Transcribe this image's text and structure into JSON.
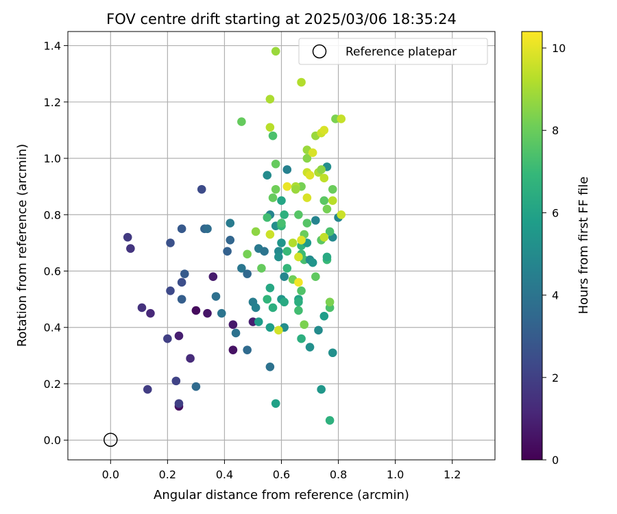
{
  "chart_data": {
    "type": "scatter",
    "title": "FOV centre drift starting at 2025/03/06 18:35:24",
    "xlabel": "Angular distance from reference (arcmin)",
    "ylabel": "Rotation from reference (arcmin)",
    "xlim": [
      -0.15,
      1.35
    ],
    "ylim": [
      -0.07,
      1.45
    ],
    "xticks": [
      "0.0",
      "0.2",
      "0.4",
      "0.6",
      "0.8",
      "1.0",
      "1.2"
    ],
    "yticks": [
      "0.0",
      "0.2",
      "0.4",
      "0.6",
      "0.8",
      "1.0",
      "1.2",
      "1.4"
    ],
    "grid": true,
    "legend": {
      "position": "top-right",
      "label": "Reference platepar"
    },
    "reference_point": {
      "x": 0.0,
      "y": 0.0
    },
    "colorbar": {
      "label": "Hours from first FF file",
      "range": [
        0,
        10.4
      ],
      "ticks": [
        "0",
        "2",
        "4",
        "6",
        "8",
        "10"
      ],
      "colormap": "viridis"
    },
    "points": [
      [
        0.24,
        0.12,
        0.4
      ],
      [
        0.3,
        0.46,
        0.3
      ],
      [
        0.34,
        0.45,
        0.6
      ],
      [
        0.36,
        0.58,
        0.8
      ],
      [
        0.43,
        0.41,
        0.7
      ],
      [
        0.43,
        0.32,
        0.5
      ],
      [
        0.5,
        0.42,
        0.9
      ],
      [
        0.24,
        0.37,
        0.9
      ],
      [
        0.28,
        0.29,
        1.3
      ],
      [
        0.14,
        0.45,
        1.2
      ],
      [
        0.11,
        0.47,
        1.5
      ],
      [
        0.07,
        0.68,
        1.6
      ],
      [
        0.06,
        0.72,
        1.8
      ],
      [
        0.13,
        0.18,
        1.9
      ],
      [
        0.24,
        0.13,
        2.0
      ],
      [
        0.23,
        0.21,
        2.1
      ],
      [
        0.2,
        0.36,
        2.0
      ],
      [
        0.21,
        0.53,
        2.3
      ],
      [
        0.21,
        0.7,
        2.6
      ],
      [
        0.25,
        0.56,
        2.5
      ],
      [
        0.25,
        0.75,
        2.9
      ],
      [
        0.26,
        0.59,
        3.0
      ],
      [
        0.25,
        0.5,
        3.1
      ],
      [
        0.32,
        0.89,
        2.4
      ],
      [
        0.33,
        0.75,
        3.3
      ],
      [
        0.3,
        0.19,
        3.6
      ],
      [
        0.34,
        0.75,
        3.7
      ],
      [
        0.41,
        0.67,
        3.2
      ],
      [
        0.42,
        0.71,
        3.4
      ],
      [
        0.37,
        0.51,
        3.8
      ],
      [
        0.39,
        0.45,
        4.0
      ],
      [
        0.44,
        0.38,
        3.9
      ],
      [
        0.46,
        0.61,
        4.1
      ],
      [
        0.48,
        0.59,
        3.5
      ],
      [
        0.48,
        0.32,
        3.6
      ],
      [
        0.42,
        0.77,
        4.3
      ],
      [
        0.5,
        0.49,
        4.4
      ],
      [
        0.51,
        0.47,
        4.6
      ],
      [
        0.52,
        0.68,
        4.2
      ],
      [
        0.54,
        0.67,
        4.0
      ],
      [
        0.56,
        0.26,
        3.9
      ],
      [
        0.56,
        0.8,
        4.7
      ],
      [
        0.55,
        0.94,
        5.0
      ],
      [
        0.58,
        0.76,
        5.1
      ],
      [
        0.59,
        0.67,
        4.9
      ],
      [
        0.59,
        0.65,
        5.2
      ],
      [
        0.6,
        0.7,
        5.4
      ],
      [
        0.61,
        0.58,
        4.8
      ],
      [
        0.61,
        0.4,
        5.1
      ],
      [
        0.6,
        0.5,
        5.5
      ],
      [
        0.62,
        0.96,
        4.6
      ],
      [
        0.58,
        0.13,
        5.9
      ],
      [
        0.52,
        0.42,
        5.7
      ],
      [
        0.56,
        0.4,
        5.8
      ],
      [
        0.56,
        0.54,
        6.2
      ],
      [
        0.55,
        0.5,
        6.8
      ],
      [
        0.57,
        0.47,
        6.5
      ],
      [
        0.6,
        0.85,
        6.1
      ],
      [
        0.61,
        0.8,
        6.6
      ],
      [
        0.6,
        0.76,
        6.9
      ],
      [
        0.62,
        0.61,
        6.9
      ],
      [
        0.62,
        0.67,
        7.0
      ],
      [
        0.61,
        0.49,
        6.3
      ],
      [
        0.66,
        0.5,
        6.0
      ],
      [
        0.66,
        0.49,
        6.5
      ],
      [
        0.67,
        0.36,
        6.5
      ],
      [
        0.67,
        0.69,
        6.8
      ],
      [
        0.67,
        0.66,
        6.3
      ],
      [
        0.68,
        0.64,
        7.3
      ],
      [
        0.69,
        0.7,
        5.6
      ],
      [
        0.7,
        0.33,
        5.2
      ],
      [
        0.7,
        0.64,
        5.0
      ],
      [
        0.71,
        0.63,
        5.4
      ],
      [
        0.72,
        0.78,
        4.7
      ],
      [
        0.73,
        0.39,
        5.0
      ],
      [
        0.74,
        0.18,
        5.5
      ],
      [
        0.75,
        0.44,
        5.8
      ],
      [
        0.76,
        0.97,
        5.1
      ],
      [
        0.78,
        0.72,
        4.9
      ],
      [
        0.78,
        0.31,
        5.2
      ],
      [
        0.8,
        0.79,
        4.8
      ],
      [
        0.77,
        0.07,
        6.6
      ],
      [
        0.76,
        0.64,
        7.0
      ],
      [
        0.76,
        0.65,
        6.3
      ],
      [
        0.74,
        0.71,
        7.7
      ],
      [
        0.77,
        0.74,
        7.4
      ],
      [
        0.75,
        0.85,
        7.7
      ],
      [
        0.76,
        0.82,
        8.2
      ],
      [
        0.78,
        0.89,
        8.0
      ],
      [
        0.79,
        1.14,
        8.3
      ],
      [
        0.77,
        0.47,
        7.4
      ],
      [
        0.77,
        0.49,
        8.3
      ],
      [
        0.72,
        0.58,
        7.8
      ],
      [
        0.69,
        0.77,
        7.6
      ],
      [
        0.68,
        0.73,
        8.0
      ],
      [
        0.67,
        0.66,
        7.1
      ],
      [
        0.67,
        0.53,
        7.5
      ],
      [
        0.66,
        0.46,
        7.2
      ],
      [
        0.68,
        0.41,
        8.3
      ],
      [
        0.66,
        0.8,
        7.6
      ],
      [
        0.67,
        0.9,
        8.2
      ],
      [
        0.64,
        0.57,
        8.1
      ],
      [
        0.6,
        0.77,
        7.3
      ],
      [
        0.57,
        0.86,
        7.9
      ],
      [
        0.58,
        0.89,
        8.1
      ],
      [
        0.58,
        0.98,
        7.9
      ],
      [
        0.57,
        1.08,
        7.4
      ],
      [
        0.46,
        1.13,
        7.9
      ],
      [
        0.51,
        0.74,
        8.6
      ],
      [
        0.53,
        0.61,
        7.9
      ],
      [
        0.48,
        0.66,
        8.2
      ],
      [
        0.55,
        0.79,
        7.2
      ],
      [
        0.56,
        1.11,
        9.3
      ],
      [
        0.56,
        1.21,
        9.1
      ],
      [
        0.58,
        1.38,
        8.8
      ],
      [
        0.67,
        1.27,
        9.2
      ],
      [
        0.69,
        1.0,
        8.5
      ],
      [
        0.69,
        1.03,
        8.8
      ],
      [
        0.72,
        1.08,
        8.8
      ],
      [
        0.74,
        1.09,
        9.6
      ],
      [
        0.73,
        0.95,
        9.1
      ],
      [
        0.74,
        0.96,
        8.6
      ],
      [
        0.75,
        0.93,
        9.4
      ],
      [
        0.71,
        1.02,
        9.8
      ],
      [
        0.75,
        1.1,
        9.8
      ],
      [
        0.81,
        1.14,
        9.5
      ],
      [
        0.78,
        0.85,
        9.3
      ],
      [
        0.81,
        0.8,
        9.6
      ],
      [
        0.75,
        0.72,
        9.4
      ],
      [
        0.69,
        0.95,
        9.6
      ],
      [
        0.7,
        0.94,
        9.9
      ],
      [
        0.62,
        0.9,
        10.1
      ],
      [
        0.69,
        0.86,
        9.8
      ],
      [
        0.65,
        0.9,
        9.1
      ],
      [
        0.65,
        0.89,
        8.8
      ],
      [
        0.64,
        0.7,
        9.2
      ],
      [
        0.66,
        0.65,
        9.7
      ],
      [
        0.66,
        0.56,
        10.2
      ],
      [
        0.59,
        0.39,
        9.7
      ],
      [
        0.56,
        0.73,
        9.6
      ],
      [
        0.67,
        0.71,
        9.9
      ]
    ]
  }
}
